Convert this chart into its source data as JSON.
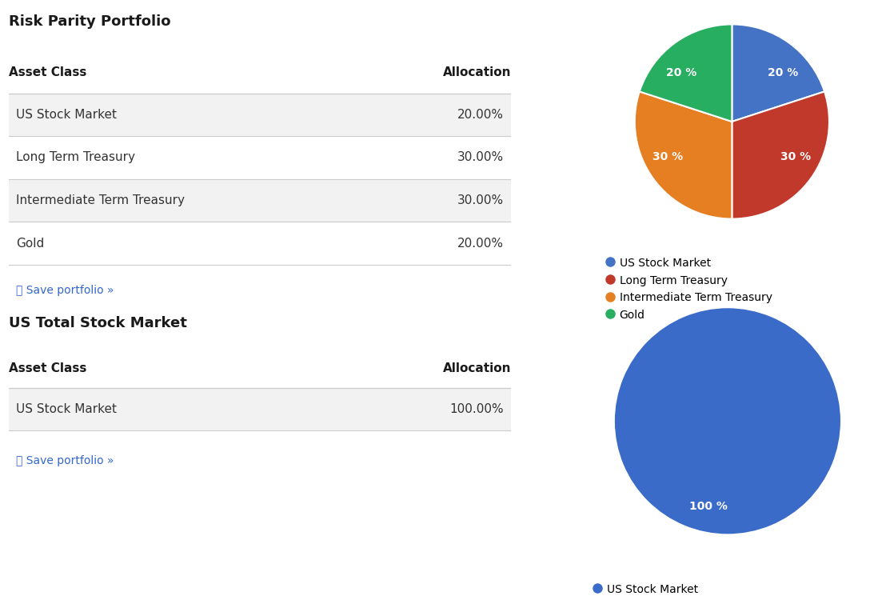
{
  "portfolio1": {
    "title": "Risk Parity Portfolio",
    "header_asset": "Asset Class",
    "header_alloc": "Allocation",
    "rows": [
      {
        "asset": "US Stock Market",
        "alloc": "20.00%",
        "value": 20
      },
      {
        "asset": "Long Term Treasury",
        "alloc": "30.00%",
        "value": 30
      },
      {
        "asset": "Intermediate Term Treasury",
        "alloc": "30.00%",
        "value": 30
      },
      {
        "asset": "Gold",
        "alloc": "20.00%",
        "value": 20
      }
    ],
    "pie_colors": [
      "#4472C4",
      "#C0392B",
      "#E67E22",
      "#27AE60"
    ],
    "pie_labels": [
      "20 %",
      "30 %",
      "30 %",
      "20 %"
    ],
    "legend_labels": [
      "US Stock Market",
      "Long Term Treasury",
      "Intermediate Term Treasury",
      "Gold"
    ]
  },
  "portfolio2": {
    "title": "US Total Stock Market",
    "header_asset": "Asset Class",
    "header_alloc": "Allocation",
    "rows": [
      {
        "asset": "US Stock Market",
        "alloc": "100.00%",
        "value": 100
      }
    ],
    "pie_colors": [
      "#3A6BC9"
    ],
    "pie_labels": [
      "100 %"
    ],
    "legend_labels": [
      "US Stock Market"
    ]
  },
  "bg_color": "#ffffff",
  "text_color": "#333333",
  "header_color": "#1a1a1a",
  "row_bg_even": "#f2f2f2",
  "row_bg_odd": "#ffffff",
  "line_color": "#cccccc",
  "save_link_color": "#3366CC",
  "title_fontsize": 13,
  "header_fontsize": 11,
  "row_fontsize": 11,
  "pie_label_fontsize": 10,
  "legend_fontsize": 10,
  "save_fontsize": 10
}
